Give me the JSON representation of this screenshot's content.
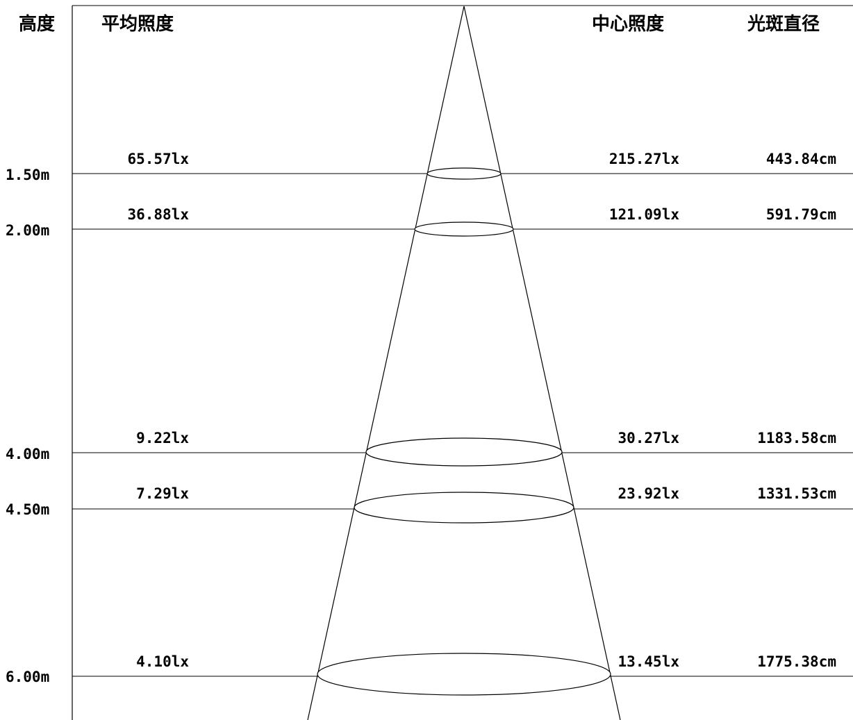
{
  "headers": {
    "height": "高度",
    "avg_illuminance": "平均照度",
    "center_illuminance": "中心照度",
    "spot_diameter": "光斑直径"
  },
  "rows": [
    {
      "height": "1.50m",
      "avg": "65.57lx",
      "center": "215.27lx",
      "diameter": "443.84cm"
    },
    {
      "height": "2.00m",
      "avg": "36.88lx",
      "center": "121.09lx",
      "diameter": "591.79cm"
    },
    {
      "height": "4.00m",
      "avg": "9.22lx",
      "center": "30.27lx",
      "diameter": "1183.58cm"
    },
    {
      "height": "4.50m",
      "avg": "7.29lx",
      "center": "23.92lx",
      "diameter": "1331.53cm"
    },
    {
      "height": "6.00m",
      "avg": "4.10lx",
      "center": "13.45lx",
      "diameter": "1775.38cm"
    }
  ]
}
